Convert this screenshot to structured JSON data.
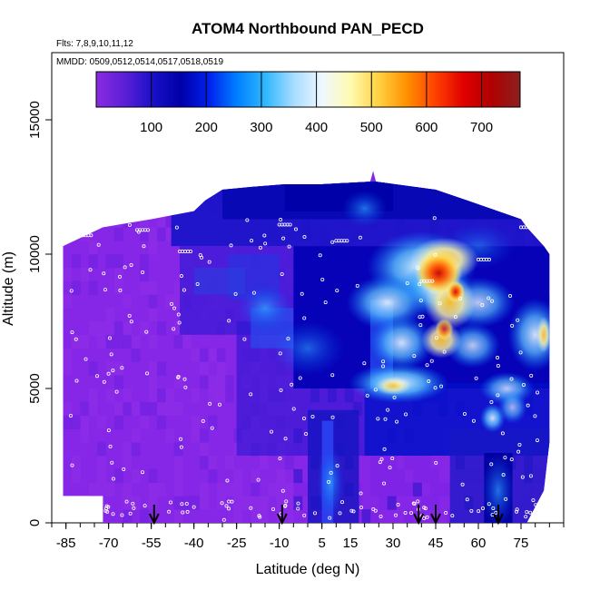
{
  "chart_data": {
    "type": "heatmap",
    "title": "ATOM4 Northbound PAN_PECD",
    "flights_label": "Flts: 7,8,9,10,11,12",
    "mmdd_label": "MMDD: 0509,0512,0514,0517,0518,0519",
    "xlabel": "Latitude (deg N)",
    "ylabel": "Altitude (m)",
    "xlim": [
      -90,
      90
    ],
    "ylim": [
      0,
      17500
    ],
    "x_ticks": [
      -85,
      -70,
      -55,
      -40,
      -25,
      -10,
      5,
      15,
      30,
      45,
      60,
      75
    ],
    "y_ticks": [
      0,
      5000,
      10000,
      15000
    ],
    "colorbar": {
      "range": [
        0,
        770
      ],
      "ticks": [
        100,
        200,
        300,
        400,
        500,
        600,
        700
      ],
      "colors": [
        "#8a2be2",
        "#5b1fd6",
        "#1a10c8",
        "#0000a8",
        "#0022ee",
        "#0080ff",
        "#30b8ff",
        "#a8ddff",
        "#f0f8ff",
        "#fffbb0",
        "#ffd040",
        "#ff9000",
        "#ff4000",
        "#e00000",
        "#b00000",
        "#8a2020"
      ]
    },
    "profile_markers_lat": [
      -54,
      -9,
      39,
      45,
      67
    ],
    "grid": false,
    "legend": "colorbar top"
  }
}
